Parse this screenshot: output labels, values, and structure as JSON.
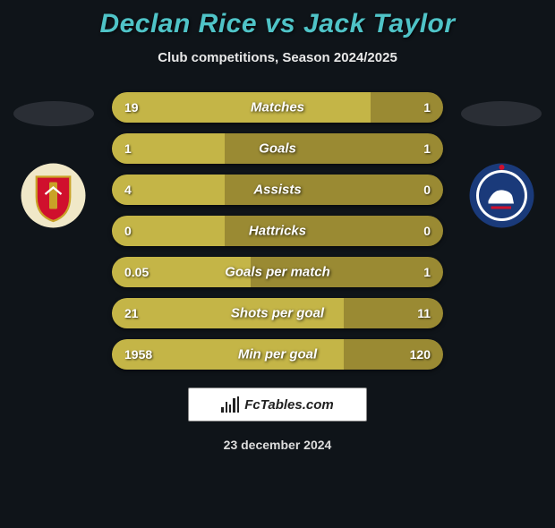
{
  "title": "Declan Rice vs Jack Taylor",
  "subtitle": "Club competitions, Season 2024/2025",
  "date": "23 december 2024",
  "footer_brand": "FcTables.com",
  "colors": {
    "background": "#0f1419",
    "title": "#4fc3c7",
    "bar_base": "#9a8a33",
    "bar_fill": "#c4b547",
    "text": "#ffffff"
  },
  "crest_left": {
    "name": "arsenal-crest",
    "outer": "#f0e8c8",
    "shield": "#d0102d",
    "accent": "#c9a227"
  },
  "crest_right": {
    "name": "ipswich-crest",
    "outer": "#1a3a7a",
    "inner": "#ffffff",
    "accent": "#d0102d"
  },
  "rows": [
    {
      "label": "Matches",
      "left": "19",
      "right": "1",
      "fill_pct": 78
    },
    {
      "label": "Goals",
      "left": "1",
      "right": "1",
      "fill_pct": 34
    },
    {
      "label": "Assists",
      "left": "4",
      "right": "0",
      "fill_pct": 34
    },
    {
      "label": "Hattricks",
      "left": "0",
      "right": "0",
      "fill_pct": 34
    },
    {
      "label": "Goals per match",
      "left": "0.05",
      "right": "1",
      "fill_pct": 42
    },
    {
      "label": "Shots per goal",
      "left": "21",
      "right": "11",
      "fill_pct": 70
    },
    {
      "label": "Min per goal",
      "left": "1958",
      "right": "120",
      "fill_pct": 70
    }
  ]
}
